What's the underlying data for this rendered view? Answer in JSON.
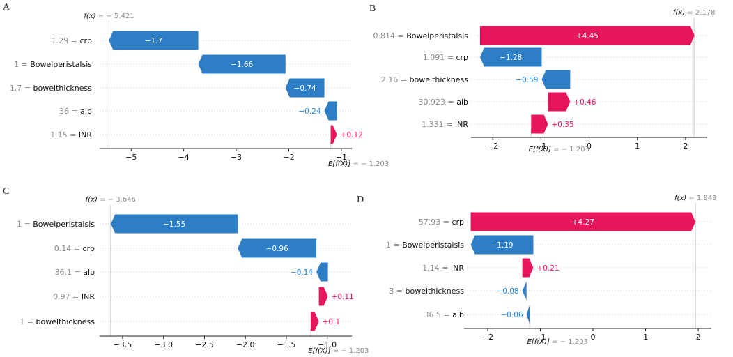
{
  "colors": {
    "positive": "#ff0d57",
    "negative": "#1e88e5",
    "bar_negative": "#2d7ec5",
    "bar_positive": "#e5175a",
    "grid": "#e6e6e6",
    "muted": "#8a8a8a"
  },
  "chart_data": [
    {
      "panel": "A",
      "type": "waterfall",
      "fx_symbol": "f(x)",
      "fx_value": "− 5.421",
      "fx": -5.421,
      "efx_symbol": "E[f(X)]",
      "efx_value": "− 1.203",
      "base": -1.203,
      "xlim": [
        -5.6,
        -0.8
      ],
      "ticks": [
        -5,
        -4,
        -3,
        -2,
        -1
      ],
      "tick_labels": [
        "−5",
        "−4",
        "−3",
        "−2",
        "−1"
      ],
      "features": [
        {
          "value": "1.29",
          "name": "crp",
          "shap": -1.7,
          "label": "−1.7"
        },
        {
          "value": "1",
          "name": "Bowelperistalsis",
          "shap": -1.66,
          "label": "−1.66"
        },
        {
          "value": "1.7",
          "name": "bowelthickness",
          "shap": -0.74,
          "label": "−0.74"
        },
        {
          "value": "36",
          "name": "alb",
          "shap": -0.24,
          "label": "−0.24"
        },
        {
          "value": "1.15",
          "name": "INR",
          "shap": 0.12,
          "label": "+0.12"
        }
      ]
    },
    {
      "panel": "B",
      "type": "waterfall",
      "fx_symbol": "f(x)",
      "fx_value": "2.178",
      "fx": 2.178,
      "efx_symbol": "E[f(X)]",
      "efx_value": "− 1.203",
      "base": -1.203,
      "xlim": [
        -2.45,
        2.45
      ],
      "ticks": [
        -2,
        -1,
        0,
        1,
        2
      ],
      "tick_labels": [
        "−2",
        "−1",
        "0",
        "1",
        "2"
      ],
      "features": [
        {
          "value": "0.814",
          "name": "Bowelperistalsis",
          "shap": 4.45,
          "label": "+4.45"
        },
        {
          "value": "1.091",
          "name": "crp",
          "shap": -1.28,
          "label": "−1.28"
        },
        {
          "value": "2.16",
          "name": "bowelthickness",
          "shap": -0.59,
          "label": "−0.59"
        },
        {
          "value": "30.923",
          "name": "alb",
          "shap": 0.46,
          "label": "+0.46"
        },
        {
          "value": "1.331",
          "name": "INR",
          "shap": 0.35,
          "label": "+0.35"
        }
      ]
    },
    {
      "panel": "C",
      "type": "waterfall",
      "fx_symbol": "f(x)",
      "fx_value": "− 3.646",
      "fx": -3.646,
      "efx_symbol": "E[f(X)]",
      "efx_value": "− 1.203",
      "base": -1.203,
      "xlim": [
        -3.78,
        -0.7
      ],
      "ticks": [
        -3.5,
        -3.0,
        -2.5,
        -2.0,
        -1.5,
        -1.0
      ],
      "tick_labels": [
        "−3.5",
        "−3.0",
        "−2.5",
        "−2.0",
        "−1.5",
        "−1.0"
      ],
      "features": [
        {
          "value": "1",
          "name": "Bowelperistalsis",
          "shap": -1.55,
          "label": "−1.55"
        },
        {
          "value": "0.14",
          "name": "crp",
          "shap": -0.96,
          "label": "−0.96"
        },
        {
          "value": "36.1",
          "name": "alb",
          "shap": -0.14,
          "label": "−0.14"
        },
        {
          "value": "0.97",
          "name": "INR",
          "shap": 0.11,
          "label": "+0.11"
        },
        {
          "value": "1",
          "name": "bowelthickness",
          "shap": 0.1,
          "label": "+0.1"
        }
      ]
    },
    {
      "panel": "D",
      "type": "waterfall",
      "fx_symbol": "f(x)",
      "fx_value": "1.949",
      "fx": 1.949,
      "efx_symbol": "E[f(X)]",
      "efx_value": "− 1.203",
      "base": -1.203,
      "xlim": [
        -2.45,
        2.25
      ],
      "ticks": [
        -2,
        -1,
        0,
        1,
        2
      ],
      "tick_labels": [
        "−2",
        "−1",
        "0",
        "1",
        "2"
      ],
      "features": [
        {
          "value": "57.93",
          "name": "crp",
          "shap": 4.27,
          "label": "+4.27"
        },
        {
          "value": "1",
          "name": "Bowelperistalsis",
          "shap": -1.19,
          "label": "−1.19"
        },
        {
          "value": "1.14",
          "name": "INR",
          "shap": 0.21,
          "label": "+0.21"
        },
        {
          "value": "3",
          "name": "bowelthickness",
          "shap": -0.08,
          "label": "−0.08"
        },
        {
          "value": "36.5",
          "name": "alb",
          "shap": -0.06,
          "label": "−0.06"
        }
      ]
    }
  ]
}
